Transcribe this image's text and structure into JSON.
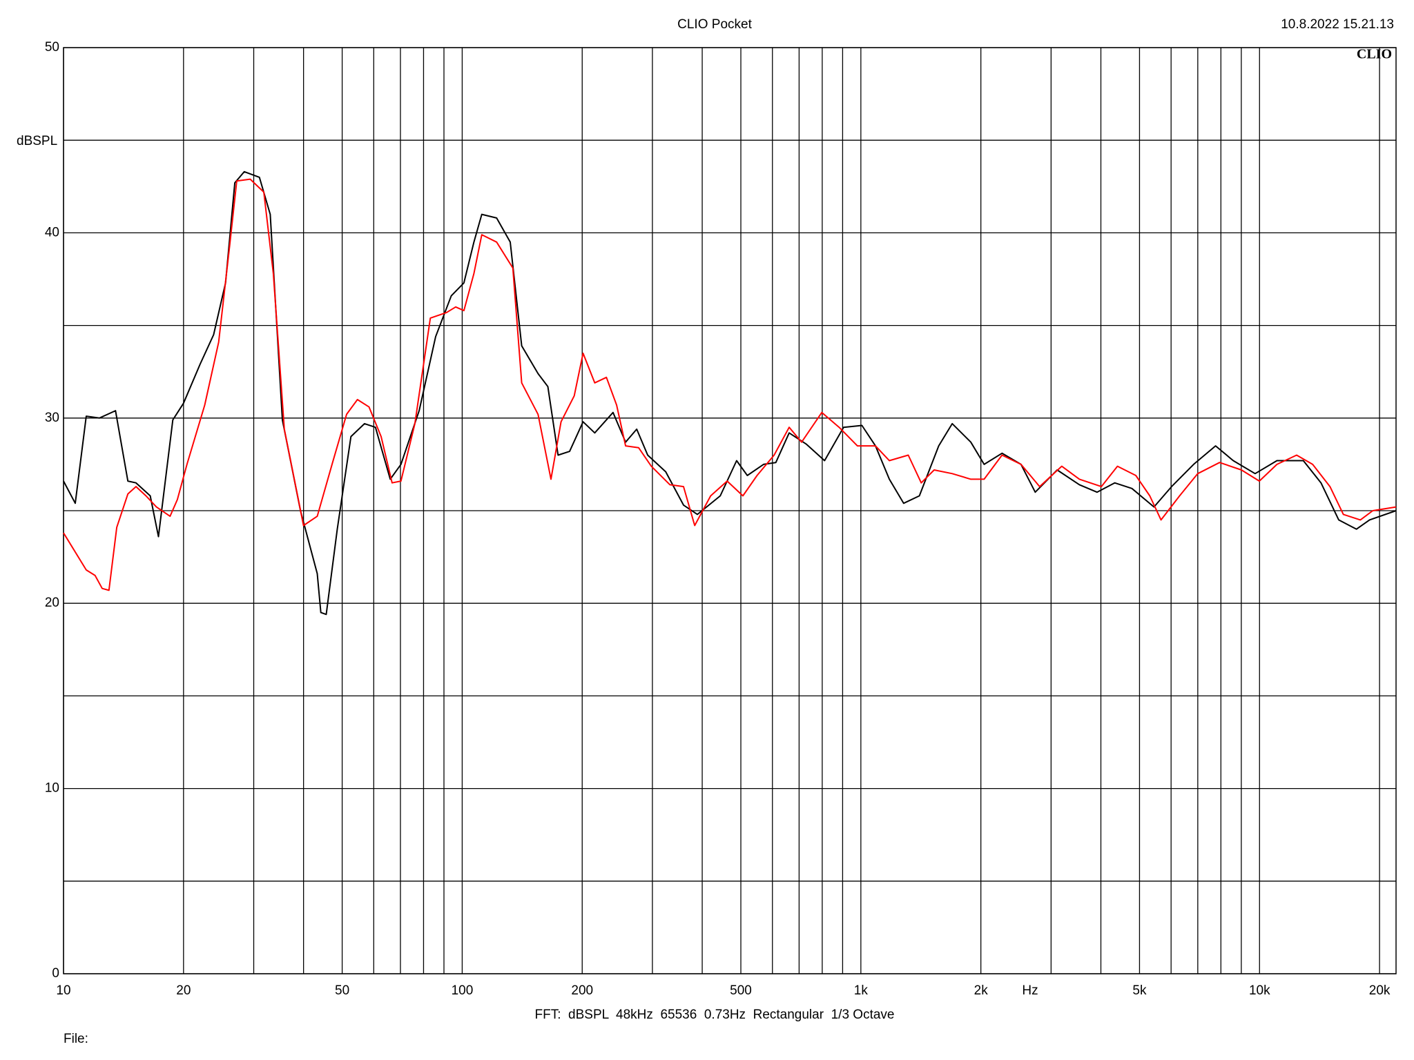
{
  "chart_data": {
    "type": "line",
    "title": "CLIO Pocket",
    "timestamp": "10.8.2022 15.21.13",
    "logo": "CLIO",
    "y_label": "dBSPL",
    "x_label": "Hz",
    "footer": "FFT:  dBSPL  48kHz  65536  0.73Hz  Rectangular  1/3 Octave",
    "file_label": "File:",
    "x_scale": "log",
    "grid": true,
    "xlim": [
      10,
      22000
    ],
    "xticks": [
      10,
      20,
      50,
      100,
      200,
      500,
      {
        "value": 1000,
        "label": "1k"
      },
      {
        "value": 2000,
        "label": "2k"
      },
      {
        "value": 5000,
        "label": "5k"
      },
      {
        "value": 10000,
        "label": "10k"
      },
      {
        "value": 20000,
        "label": "20k"
      }
    ],
    "x_minor_grid": [
      30,
      40,
      60,
      70,
      80,
      90,
      300,
      400,
      600,
      700,
      800,
      900,
      3000,
      4000,
      6000,
      7000,
      8000,
      9000
    ],
    "ylim": [
      0,
      50
    ],
    "yticks": [
      0,
      10,
      20,
      30,
      40,
      50
    ],
    "y_minor_grid": [
      5,
      15,
      25,
      35,
      45
    ],
    "series": [
      {
        "color": "#000000",
        "x": [
          10,
          10.7,
          11.4,
          12.3,
          13.5,
          14.5,
          15.2,
          16.5,
          17.3,
          18.8,
          20,
          22,
          23.8,
          25.5,
          26.9,
          28.4,
          31,
          33,
          35.4,
          39.3,
          43.3,
          44.2,
          45.6,
          48.6,
          52.6,
          56.9,
          60.6,
          66,
          70.2,
          78,
          85.8,
          93.9,
          101,
          107,
          112,
          122,
          132,
          141,
          155,
          164,
          174,
          186,
          201,
          215,
          239,
          257,
          274,
          292,
          324,
          359,
          389,
          444,
          488,
          519,
          570,
          612,
          661,
          729,
          811,
          905,
          1006,
          1088,
          1179,
          1280,
          1402,
          1568,
          1695,
          1887,
          2038,
          2260,
          2522,
          2738,
          3108,
          3533,
          3911,
          4333,
          4784,
          5435,
          6018,
          6834,
          7759,
          8592,
          9750,
          11060,
          12880,
          14260,
          15800,
          17500,
          18880,
          22000
        ],
        "values": [
          26.6,
          25.4,
          30.1,
          30,
          30.4,
          26.6,
          26.5,
          25.8,
          23.6,
          29.9,
          30.8,
          32.9,
          34.5,
          37.3,
          42.7,
          43.3,
          43,
          41,
          29.9,
          25,
          21.6,
          19.5,
          19.4,
          24,
          29,
          29.7,
          29.5,
          26.7,
          27.5,
          30.4,
          34.4,
          36.6,
          37.3,
          39.5,
          41,
          40.8,
          39.5,
          33.9,
          32.4,
          31.7,
          28,
          28.2,
          29.8,
          29.2,
          30.3,
          28.7,
          29.4,
          28,
          27.1,
          25.3,
          24.8,
          25.8,
          27.7,
          26.9,
          27.5,
          27.6,
          29.2,
          28.6,
          27.7,
          29.5,
          29.6,
          28.5,
          26.7,
          25.4,
          25.8,
          28.5,
          29.7,
          28.7,
          27.5,
          28.1,
          27.5,
          26,
          27.2,
          26.4,
          26,
          26.5,
          26.2,
          25.2,
          26.3,
          27.5,
          28.5,
          27.7,
          27,
          27.7,
          27.7,
          26.5,
          24.5,
          24,
          24.5,
          25
        ]
      },
      {
        "color": "#ff0000",
        "x": [
          10,
          11.4,
          12,
          12.5,
          13,
          13.6,
          14.5,
          15.2,
          16.1,
          17.1,
          18.5,
          19.3,
          20.4,
          22.6,
          24.5,
          26.1,
          27.2,
          29.4,
          31.8,
          33.6,
          35.8,
          40,
          43.3,
          47.3,
          51.3,
          54.6,
          58.4,
          62.6,
          66.7,
          70.2,
          76.1,
          83.2,
          91.4,
          96.3,
          101,
          107,
          112,
          122,
          134,
          141,
          155,
          167,
          177,
          191,
          201,
          215,
          230,
          244,
          257,
          277,
          298,
          332,
          359,
          383,
          420,
          462,
          506,
          549,
          606,
          661,
          710,
          798,
          882,
          980,
          1088,
          1179,
          1315,
          1417,
          1527,
          1695,
          1887,
          2038,
          2260,
          2522,
          2808,
          3190,
          3533,
          4011,
          4402,
          4895,
          5305,
          5662,
          6303,
          6998,
          7939,
          9009,
          9987,
          11060,
          12390,
          13590,
          15020,
          16230,
          17900,
          19230,
          22000
        ],
        "values": [
          23.8,
          21.8,
          21.5,
          20.8,
          20.7,
          24.1,
          25.9,
          26.3,
          25.8,
          25.2,
          24.7,
          25.6,
          27.5,
          30.7,
          34.1,
          39.3,
          42.8,
          42.9,
          42.2,
          37.8,
          29.4,
          24.2,
          24.7,
          27.6,
          30.2,
          31,
          30.6,
          29,
          26.5,
          26.6,
          29.7,
          35.4,
          35.7,
          36,
          35.8,
          37.8,
          39.9,
          39.5,
          38.1,
          31.9,
          30.2,
          26.7,
          29.8,
          31.2,
          33.5,
          31.9,
          32.2,
          30.7,
          28.5,
          28.4,
          27.4,
          26.4,
          26.3,
          24.2,
          25.8,
          26.6,
          25.8,
          26.9,
          28,
          29.5,
          28.7,
          30.3,
          29.5,
          28.5,
          28.5,
          27.7,
          28,
          26.5,
          27.2,
          27,
          26.7,
          26.7,
          28,
          27.5,
          26.3,
          27.4,
          26.7,
          26.3,
          27.4,
          26.9,
          25.8,
          24.5,
          25.8,
          27,
          27.6,
          27.2,
          26.6,
          27.5,
          28,
          27.5,
          26.3,
          24.8,
          24.5,
          25,
          25.2
        ]
      }
    ]
  }
}
